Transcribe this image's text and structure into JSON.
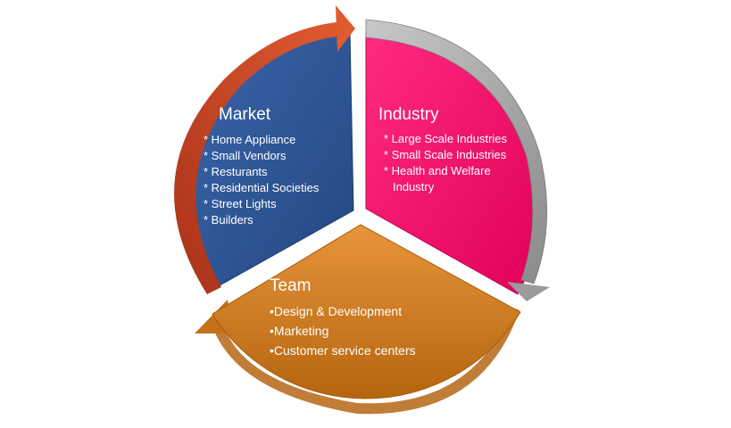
{
  "segments": [
    {
      "id": "market",
      "title": "Market",
      "color": "#2d5596",
      "arrow_color": "#c4441f",
      "items": [
        "* Home Appliance",
        "* Small Vendors",
        "* Resturants",
        "* Residential Societies",
        "* Street Lights",
        "* Builders"
      ]
    },
    {
      "id": "industry",
      "title": "Industry",
      "color": "#ff0066",
      "arrow_color": "#a0a0a0",
      "items": [
        "* Large Scale Industries",
        "* Small Scale Industries",
        "* Health and Welfare Industry"
      ]
    },
    {
      "id": "team",
      "title": "Team",
      "color": "#d17a1a",
      "arrow_color": "#d17a1a",
      "items": [
        "•Design & Development",
        "•Marketing",
        "•Customer service centers"
      ]
    }
  ]
}
